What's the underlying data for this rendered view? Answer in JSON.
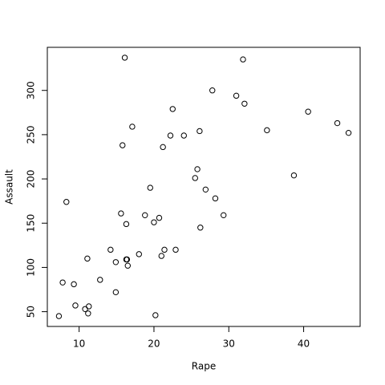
{
  "chart_data": {
    "type": "scatter",
    "xlabel": "Rape",
    "ylabel": "Assault",
    "x": [
      21.2,
      44.5,
      31.0,
      19.5,
      40.6,
      38.7,
      11.1,
      15.8,
      31.9,
      25.8,
      20.2,
      14.2,
      24.0,
      21.0,
      11.3,
      18.0,
      16.3,
      22.2,
      7.8,
      27.8,
      16.3,
      35.1,
      14.9,
      17.1,
      28.2,
      16.4,
      16.5,
      46.0,
      9.5,
      18.8,
      32.1,
      26.1,
      16.1,
      7.3,
      21.4,
      20.0,
      29.3,
      14.9,
      8.3,
      22.5,
      12.8,
      26.9,
      25.5,
      22.9,
      11.2,
      20.7,
      26.2,
      9.3,
      10.8,
      15.6
    ],
    "values": [
      236,
      263,
      294,
      190,
      276,
      204,
      110,
      238,
      335,
      211,
      46,
      120,
      249,
      113,
      56,
      115,
      109,
      249,
      83,
      300,
      149,
      255,
      72,
      259,
      178,
      109,
      102,
      252,
      57,
      159,
      285,
      254,
      337,
      45,
      120,
      151,
      159,
      106,
      174,
      279,
      86,
      188,
      201,
      120,
      48,
      156,
      145,
      81,
      53,
      161
    ],
    "color": "#000000",
    "xlim": [
      5.752,
      47.548
    ],
    "ylim": [
      33.32,
      348.68
    ],
    "xticks": [
      10,
      20,
      30,
      40
    ],
    "yticks": [
      50,
      100,
      150,
      200,
      250,
      300
    ]
  }
}
